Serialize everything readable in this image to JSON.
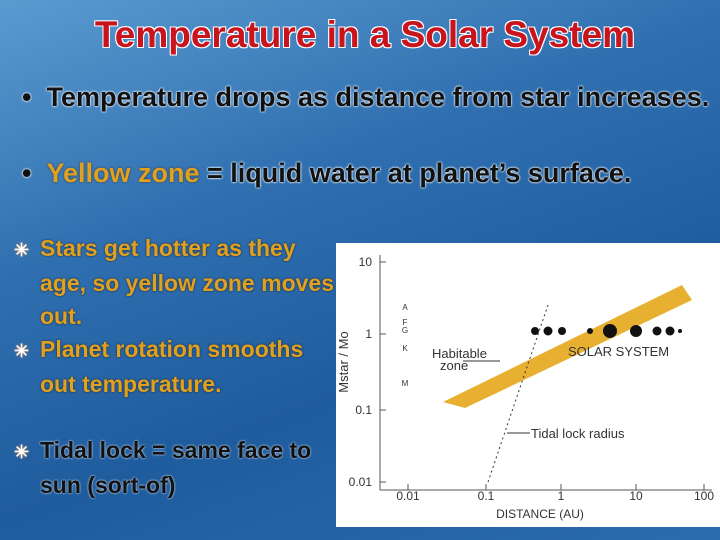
{
  "title": "Temperature in a Solar System",
  "bullets": [
    {
      "parts": [
        "Temperature drops as distance from star increases."
      ]
    },
    {
      "parts": [
        "Yellow zone",
        " = liquid water at planet’s surface."
      ]
    }
  ],
  "sub_bullets": [
    "Stars get hotter as they age, so yellow zone moves out.",
    "Planet rotation smooths out temperature.",
    "Tidal lock = same face to sun (sort-of)"
  ],
  "figure": {
    "y_label": "Mstar / Mo",
    "x_label": "DISTANCE (AU)",
    "y_ticks": [
      "10",
      "1",
      "0.1",
      "0.01"
    ],
    "x_ticks": [
      "0.01",
      "0.1",
      "1",
      "10",
      "100"
    ],
    "spectral_types": [
      "A",
      "F",
      "G",
      "K",
      "M"
    ],
    "habitable_label": [
      "Habitable",
      "zone"
    ],
    "solar_system_label": "SOLAR SYSTEM",
    "tidal_lock_label": "Tidal lock radius"
  }
}
